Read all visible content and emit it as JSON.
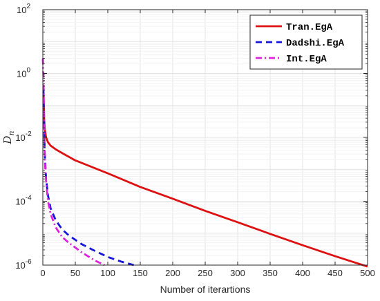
{
  "chart_data": {
    "type": "line",
    "xlabel": "Number of iterartions",
    "ylabel_base": "D",
    "ylabel_sub": "n",
    "x_scale": "linear",
    "y_scale": "log",
    "xlim": [
      0,
      500
    ],
    "ylim": [
      1e-06,
      100
    ],
    "x_ticks": [
      0,
      50,
      100,
      150,
      200,
      250,
      300,
      350,
      400,
      450,
      500
    ],
    "x_tick_labels": [
      "0",
      "50",
      "100",
      "150",
      "200",
      "250",
      "300",
      "350",
      "400",
      "450",
      "500"
    ],
    "y_ticks": [
      1e-06,
      0.0001,
      0.01,
      1,
      100
    ],
    "y_tick_labels": [
      {
        "base": "10",
        "exp": "-6"
      },
      {
        "base": "10",
        "exp": "-4"
      },
      {
        "base": "10",
        "exp": "-2"
      },
      {
        "base": "10",
        "exp": "0"
      },
      {
        "base": "10",
        "exp": "2"
      }
    ],
    "grid": true,
    "legend_position": "top-right",
    "series": [
      {
        "name": "Tran.EgA",
        "color": "#dd1111",
        "dash": "solid",
        "x": [
          1,
          2,
          3,
          5,
          8,
          12,
          20,
          30,
          50,
          100,
          150,
          200,
          250,
          300,
          350,
          400,
          450,
          500
        ],
        "y": [
          0.25,
          0.04,
          0.018,
          0.01,
          0.007,
          0.0055,
          0.0042,
          0.0032,
          0.0019,
          0.00075,
          0.00028,
          0.00012,
          5e-05,
          2.2e-05,
          9.5e-06,
          4.2e-06,
          1.9e-06,
          9e-07
        ]
      },
      {
        "name": "Dadshi.EgA",
        "color": "#1515dd",
        "dash": "dashed",
        "x": [
          1,
          2,
          3,
          5,
          8,
          12,
          20,
          30,
          40,
          60,
          80,
          100,
          120,
          140
        ],
        "y": [
          0.3,
          0.02,
          0.003,
          0.0005,
          0.00015,
          6e-05,
          2.5e-05,
          1.3e-05,
          8.5e-06,
          4.5e-06,
          2.8e-06,
          1.8e-06,
          1.3e-06,
          1e-06
        ]
      },
      {
        "name": "Int.EgA",
        "color": "#dd22dd",
        "dash": "dashdot",
        "x": [
          0,
          1,
          2,
          3,
          4,
          6,
          8,
          12,
          20,
          30,
          40,
          60,
          80,
          95
        ],
        "y": [
          3,
          0.8,
          0.03,
          0.003,
          0.0008,
          0.00025,
          0.0001,
          4e-05,
          1.5e-05,
          7.5e-06,
          5e-06,
          2.5e-06,
          1.4e-06,
          1e-06
        ]
      }
    ]
  }
}
